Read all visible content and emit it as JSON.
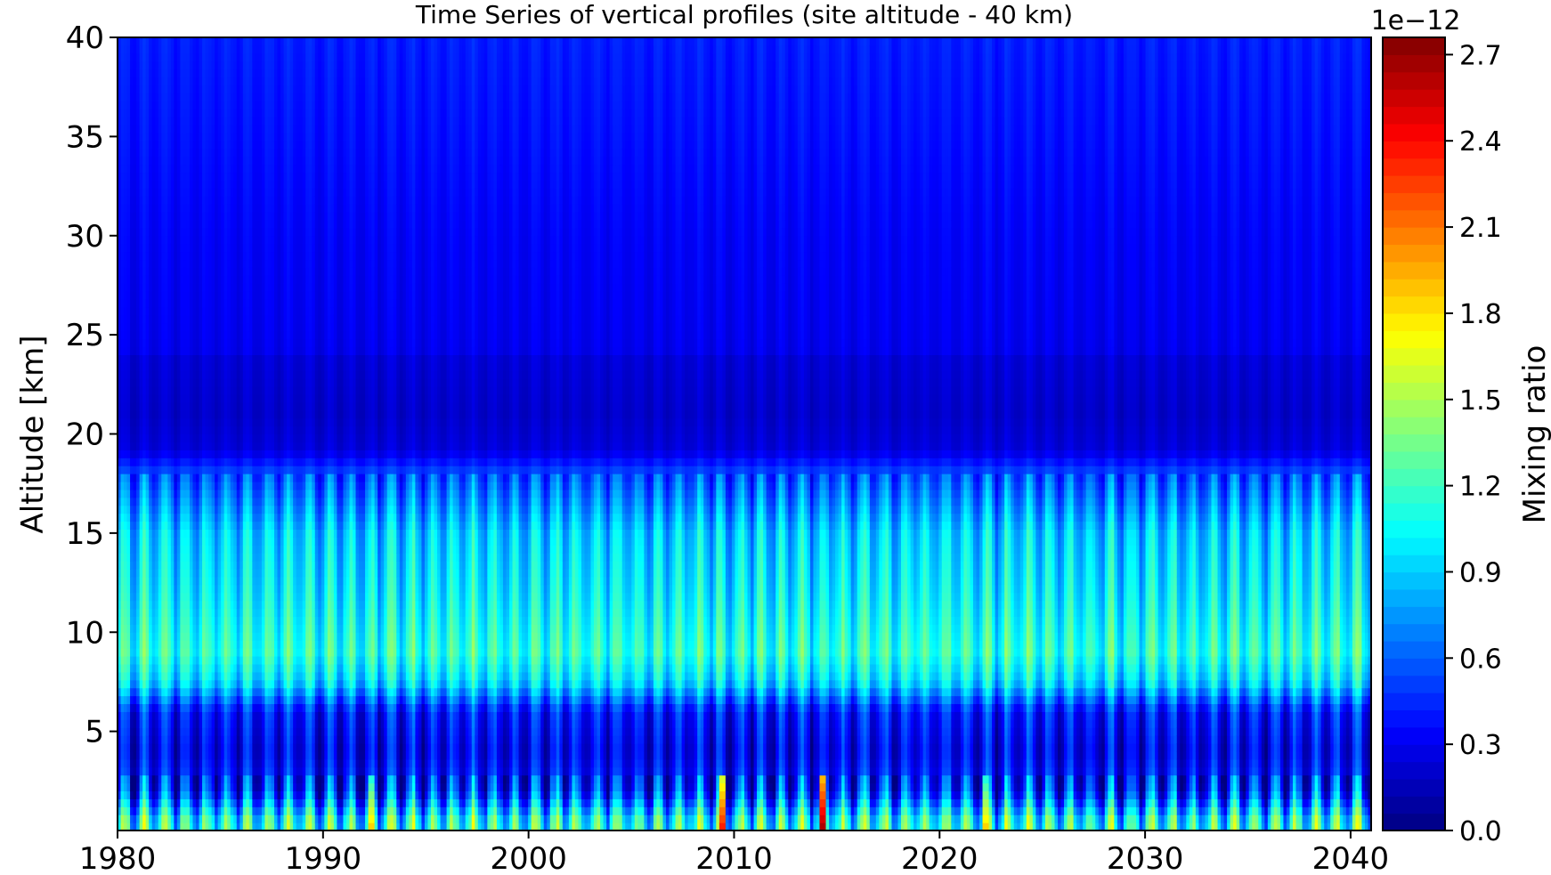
{
  "chart_data": {
    "type": "heatmap",
    "title": "Time Series of vertical profiles (site altitude - 40 km)",
    "xlabel": "",
    "ylabel": "Altitude [km]",
    "xlim": [
      1980,
      2041
    ],
    "ylim": [
      0,
      40
    ],
    "x_ticks": [
      "1980",
      "1990",
      "2000",
      "2010",
      "2020",
      "2030",
      "2040"
    ],
    "x_tick_values": [
      1980,
      1990,
      2000,
      2010,
      2020,
      2030,
      2040
    ],
    "y_ticks": [
      "5",
      "10",
      "15",
      "20",
      "25",
      "30",
      "35",
      "40"
    ],
    "y_tick_values": [
      5,
      10,
      15,
      20,
      25,
      30,
      35,
      40
    ],
    "colorbar": {
      "label": "Mixing ratio",
      "offset_text": "1e−12",
      "ticks": [
        "0.0",
        "0.3",
        "0.6",
        "0.9",
        "1.2",
        "1.5",
        "1.8",
        "2.1",
        "2.4",
        "2.7"
      ],
      "tick_values": [
        0.0,
        0.3,
        0.6,
        0.9,
        1.2,
        1.5,
        1.8,
        2.1,
        2.4,
        2.7
      ],
      "range": [
        0.0,
        2.76
      ],
      "colormap": "jet"
    },
    "grid": false,
    "profile_altitude_km": [
      0.5,
      2,
      4,
      6,
      7.5,
      9,
      12,
      15,
      18,
      19,
      21,
      25,
      30,
      35,
      40
    ],
    "profile_mean_mixing_ratio": [
      1.1,
      0.45,
      0.3,
      0.4,
      0.95,
      1.15,
      1.0,
      0.9,
      0.55,
      0.3,
      0.25,
      0.3,
      0.33,
      0.38,
      0.42
    ],
    "notable_peaks": [
      {
        "year": 1992.3,
        "altitude_km": 1,
        "value": 1.9
      },
      {
        "year": 2009.3,
        "altitude_km": 1,
        "value": 2.4
      },
      {
        "year": 2014.2,
        "altitude_km": 1,
        "value": 2.7
      },
      {
        "year": 2022.2,
        "altitude_km": 1,
        "value": 1.9
      }
    ]
  }
}
